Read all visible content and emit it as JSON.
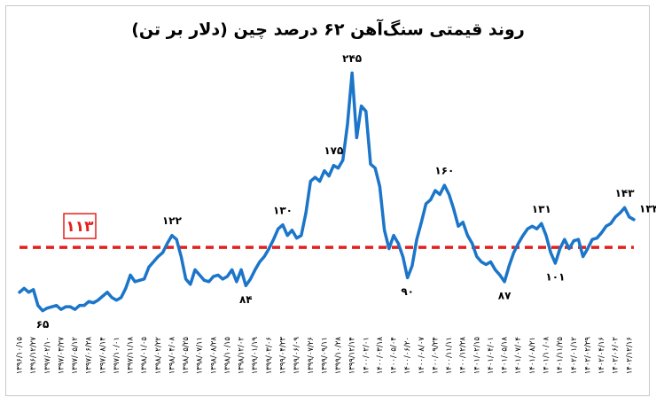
{
  "chart_data": {
    "type": "line",
    "title": "روند قیمتی سنگ‌آهن ۶۲ درصد چین (دلار بر تن)",
    "categories": [
      "۱۳۹۶/۱۰/۱۵",
      null,
      null,
      "۱۳۹۶/۱۲/۲۷",
      null,
      null,
      "۱۳۹۷/۰۲/۱۰",
      null,
      null,
      "۱۳۹۷/۰۳/۲۷",
      null,
      null,
      "۱۳۹۷/۰۵/۱۲",
      null,
      null,
      "۱۳۹۷/۰۶/۲۸",
      null,
      null,
      "۱۳۹۷/۰۸/۱۴",
      null,
      null,
      "۱۳۹۷/۱۰/۰۱",
      null,
      null,
      "۱۳۹۷/۱۱/۱۸",
      null,
      null,
      "۱۳۹۸/۰۱/۰۵",
      null,
      null,
      "۱۳۹۸/۰۲/۲۲",
      null,
      null,
      "۱۳۹۸/۰۴/۰۸",
      null,
      null,
      "۱۳۹۸/۰۵/۲۵",
      null,
      null,
      "۱۳۹۸/۰۷/۱۱",
      null,
      null,
      "۱۳۹۸/۰۸/۲۸",
      null,
      null,
      "۱۳۹۸/۱۰/۱۵",
      null,
      null,
      "۱۳۹۸/۱۲/۰۲",
      null,
      null,
      "۱۳۹۹/۰۱/۱۹",
      null,
      null,
      "۱۳۹۹/۰۳/۰۶",
      null,
      null,
      "۱۳۹۹/۰۴/۲۳",
      null,
      null,
      "۱۳۹۹/۰۶/۰۹",
      null,
      null,
      "۱۳۹۹/۰۷/۲۶",
      null,
      null,
      "۱۳۹۹/۰۹/۱۱",
      null,
      null,
      "۱۳۹۹/۱۰/۲۸",
      null,
      null,
      "۱۳۹۹/۱۲/۱۴",
      null,
      null,
      "۱۴۰۰/۰۲/۰۱",
      null,
      null,
      "۱۴۰۰/۰۳/۱۸",
      null,
      null,
      "۱۴۰۰/۰۵/۰۴",
      null,
      null,
      "۱۴۰۰/۰۶/۲۰",
      null,
      null,
      "۱۴۰۰/۰۸/۰۷",
      null,
      null,
      "۱۴۰۰/۰۹/۲۴",
      null,
      null,
      "۱۴۰۰/۱۱/۱۱",
      null,
      null,
      "۱۴۰۰/۱۲/۲۸",
      null,
      null,
      "۱۴۰۱/۰۲/۱۵",
      null,
      null,
      "۱۴۰۱/۰۴/۰۱",
      null,
      null,
      "۱۴۰۱/۰۵/۱۸",
      null,
      null,
      "۱۴۰۱/۰۷/۰۴",
      null,
      null,
      "۱۴۰۱/۰۸/۲۱",
      null,
      null,
      "۱۴۰۱/۱۰/۰۸",
      null,
      null,
      "۱۴۰۱/۱۱/۲۵",
      null,
      null,
      "۱۴۰۲/۰۱/۱۲",
      null,
      null,
      "۱۴۰۲/۰۲/۲۹",
      null,
      null,
      "۱۴۰۲/۰۴/۱۶",
      null,
      null,
      "۱۴۰۲/۰۶/۰۲",
      null,
      null,
      "۱۴۰۲/۱۲/۱۶",
      null
    ],
    "series": [
      {
        "color": "#1b75c9",
        "values": [
          79,
          82,
          79,
          81,
          69,
          65,
          67,
          68,
          69,
          66,
          68,
          68,
          66,
          69,
          69,
          72,
          71,
          73,
          76,
          79,
          75,
          73,
          75,
          82,
          92,
          87,
          88,
          89,
          98,
          102,
          106,
          109,
          116,
          122,
          119,
          106,
          89,
          85,
          96,
          92,
          88,
          87,
          91,
          92,
          89,
          91,
          96,
          87,
          96,
          84,
          89,
          96,
          102,
          106,
          112,
          119,
          127,
          130,
          122,
          126,
          120,
          122,
          139,
          163,
          166,
          163,
          171,
          167,
          175,
          173,
          179,
          206,
          245,
          196,
          220,
          216,
          176,
          173,
          159,
          126,
          112,
          122,
          116,
          106,
          90,
          99,
          119,
          132,
          146,
          149,
          156,
          153,
          160,
          153,
          142,
          129,
          132,
          122,
          116,
          106,
          102,
          100,
          102,
          96,
          92,
          87,
          99,
          109,
          116,
          122,
          127,
          129,
          127,
          131,
          122,
          109,
          101,
          112,
          119,
          112,
          118,
          119,
          106,
          112,
          119,
          120,
          124,
          129,
          131,
          136,
          139,
          143,
          136,
          134
        ],
        "value_labels": [
          null,
          null,
          null,
          null,
          null,
          "۶۵",
          null,
          null,
          null,
          null,
          null,
          null,
          null,
          null,
          null,
          null,
          null,
          null,
          null,
          null,
          null,
          null,
          null,
          null,
          null,
          null,
          null,
          null,
          null,
          null,
          null,
          null,
          null,
          "۱۲۲",
          null,
          null,
          null,
          null,
          null,
          null,
          null,
          null,
          null,
          null,
          null,
          null,
          null,
          null,
          null,
          "۸۴",
          null,
          null,
          null,
          null,
          null,
          null,
          null,
          "۱۳۰",
          null,
          null,
          null,
          null,
          null,
          null,
          null,
          null,
          null,
          null,
          "۱۷۵",
          null,
          null,
          null,
          "۲۴۵",
          null,
          null,
          null,
          null,
          null,
          null,
          null,
          null,
          null,
          null,
          null,
          "۹۰",
          null,
          null,
          null,
          null,
          null,
          null,
          null,
          "۱۶۰",
          null,
          null,
          null,
          null,
          null,
          null,
          null,
          null,
          null,
          null,
          null,
          null,
          "۸۷",
          null,
          null,
          null,
          null,
          null,
          null,
          null,
          "۱۳۱",
          null,
          null,
          "۱۰۱",
          null,
          null,
          null,
          null,
          null,
          null,
          null,
          null,
          null,
          null,
          null,
          null,
          null,
          null,
          "۱۴۳",
          null,
          "۱۳۴"
        ]
      }
    ],
    "reference_line": {
      "value": 113,
      "label": "۱۱۳",
      "color": "#e3201c"
    },
    "ylim": [
      50,
      260
    ]
  }
}
